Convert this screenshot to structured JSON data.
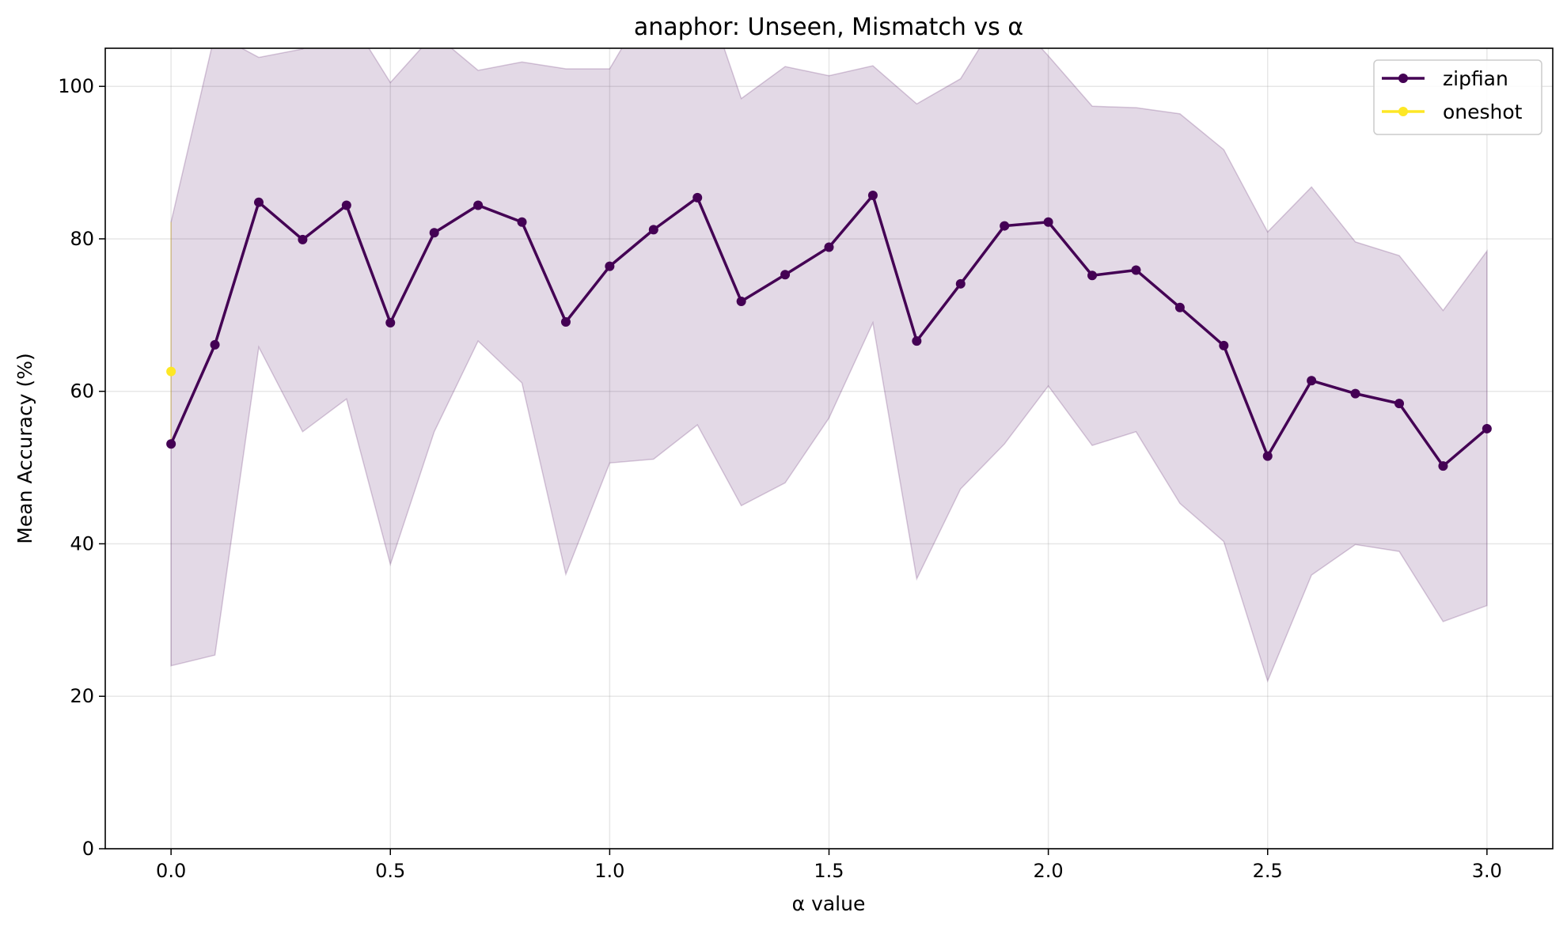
{
  "chart_data": {
    "type": "line",
    "title": "anaphor: Unseen, Mismatch vs α",
    "xlabel": "α value",
    "ylabel": "Mean Accuracy (%)",
    "xlim": [
      -0.15,
      3.15
    ],
    "ylim": [
      0,
      105
    ],
    "xticks": [
      0.0,
      0.5,
      1.0,
      1.5,
      2.0,
      2.5,
      3.0
    ],
    "xtick_labels": [
      "0.0",
      "0.5",
      "1.0",
      "1.5",
      "2.0",
      "2.5",
      "3.0"
    ],
    "yticks": [
      0,
      20,
      40,
      60,
      80,
      100
    ],
    "ytick_labels": [
      "0",
      "20",
      "40",
      "60",
      "80",
      "100"
    ],
    "grid": true,
    "legend_position": "top-right",
    "series": [
      {
        "name": "zipfian",
        "color": "#440154",
        "marker": "circle",
        "x": [
          0.0,
          0.1,
          0.2,
          0.3,
          0.4,
          0.5,
          0.6,
          0.7,
          0.8,
          0.9,
          1.0,
          1.1,
          1.2,
          1.3,
          1.4,
          1.5,
          1.6,
          1.7,
          1.8,
          1.9,
          2.0,
          2.1,
          2.2,
          2.3,
          2.4,
          2.5,
          2.6,
          2.7,
          2.8,
          2.9,
          3.0
        ],
        "y": [
          53.1,
          66.1,
          84.8,
          79.9,
          84.4,
          69.0,
          80.8,
          84.4,
          82.2,
          69.1,
          76.4,
          81.2,
          85.4,
          71.8,
          75.3,
          78.9,
          85.7,
          66.6,
          74.1,
          81.7,
          82.2,
          75.2,
          75.9,
          71.0,
          66.0,
          51.5,
          61.4,
          59.7,
          58.4,
          50.2,
          55.1
        ],
        "band_lower": [
          24.0,
          25.4,
          65.8,
          54.7,
          59.0,
          37.3,
          54.7,
          66.6,
          61.1,
          36.0,
          50.6,
          51.1,
          55.6,
          45.0,
          48.0,
          56.5,
          69.0,
          35.4,
          47.2,
          53.1,
          60.7,
          52.9,
          54.7,
          45.3,
          40.3,
          22.0,
          35.9,
          39.9,
          39.0,
          29.8,
          31.9
        ],
        "band_upper": [
          82.2,
          106.9,
          103.8,
          104.9,
          109.7,
          100.5,
          106.9,
          102.1,
          103.2,
          102.3,
          102.3,
          112.1,
          115.3,
          98.4,
          102.6,
          101.4,
          102.7,
          97.7,
          101.0,
          110.3,
          104.0,
          97.4,
          97.2,
          96.4,
          91.7,
          80.9,
          86.8,
          79.6,
          77.8,
          70.6,
          78.4
        ]
      },
      {
        "name": "oneshot",
        "color": "#fde725",
        "marker": "circle",
        "x": [
          0.0
        ],
        "y": [
          62.6
        ],
        "band_lower": [
          53.1
        ],
        "band_upper": [
          82.2
        ]
      }
    ]
  }
}
